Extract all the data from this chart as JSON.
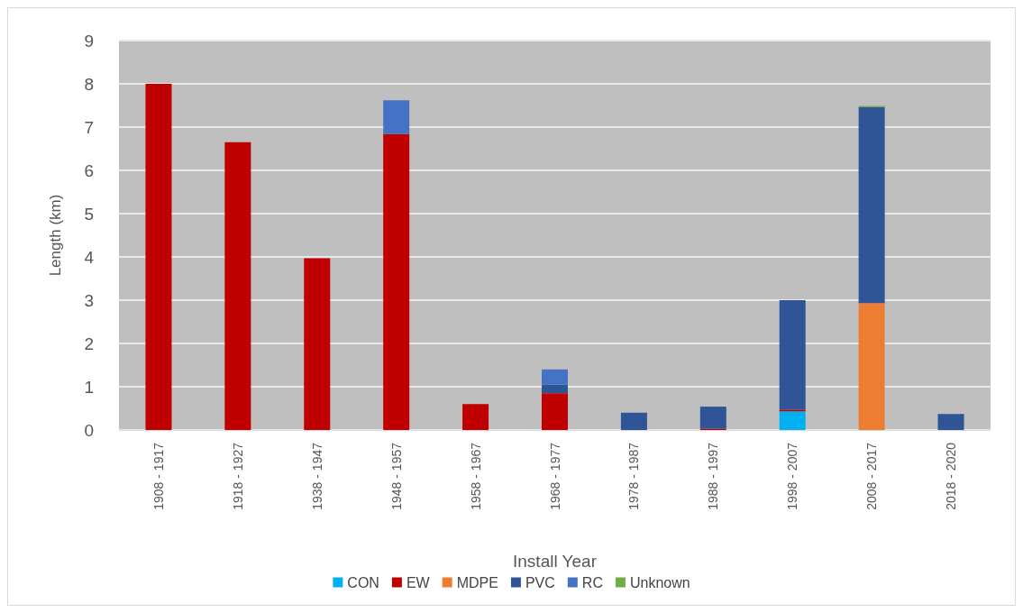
{
  "chart_data": {
    "type": "bar",
    "stacked": true,
    "xlabel": "Install Year",
    "ylabel": "Length (km)",
    "categories": [
      "1908 - 1917",
      "1918 - 1927",
      "1938 - 1947",
      "1948 - 1957",
      "1958 - 1967",
      "1968 - 1977",
      "1978 - 1987",
      "1988 - 1997",
      "1998 - 2007",
      "2008 - 2017",
      "2018 - 2020"
    ],
    "series": [
      {
        "name": "CON",
        "color": "#00b0f0",
        "values": [
          0,
          0,
          0,
          0,
          0,
          0,
          0,
          0,
          0.43,
          0,
          0
        ]
      },
      {
        "name": "EW",
        "color": "#c00000",
        "values": [
          8.0,
          6.65,
          3.97,
          6.84,
          0.6,
          0.85,
          0,
          0.03,
          0.04,
          0,
          0
        ]
      },
      {
        "name": "MDPE",
        "color": "#ed7d31",
        "values": [
          0,
          0,
          0,
          0,
          0,
          0,
          0,
          0,
          0,
          2.93,
          0
        ]
      },
      {
        "name": "PVC",
        "color": "#2f5597",
        "values": [
          0,
          0,
          0,
          0,
          0,
          0.2,
          0.4,
          0.51,
          2.53,
          4.53,
          0.37
        ]
      },
      {
        "name": "RC",
        "color": "#4472c4",
        "values": [
          0,
          0,
          0,
          0.78,
          0,
          0.35,
          0,
          0,
          0,
          0,
          0
        ]
      },
      {
        "name": "Unknown",
        "color": "#70ad47",
        "values": [
          0,
          0,
          0,
          0,
          0,
          0,
          0,
          0,
          0,
          0.03,
          0
        ]
      }
    ],
    "ylim": [
      0,
      9
    ],
    "yticks": [
      0,
      1,
      2,
      3,
      4,
      5,
      6,
      7,
      8,
      9
    ],
    "grid": "y",
    "legend": "bottom"
  }
}
